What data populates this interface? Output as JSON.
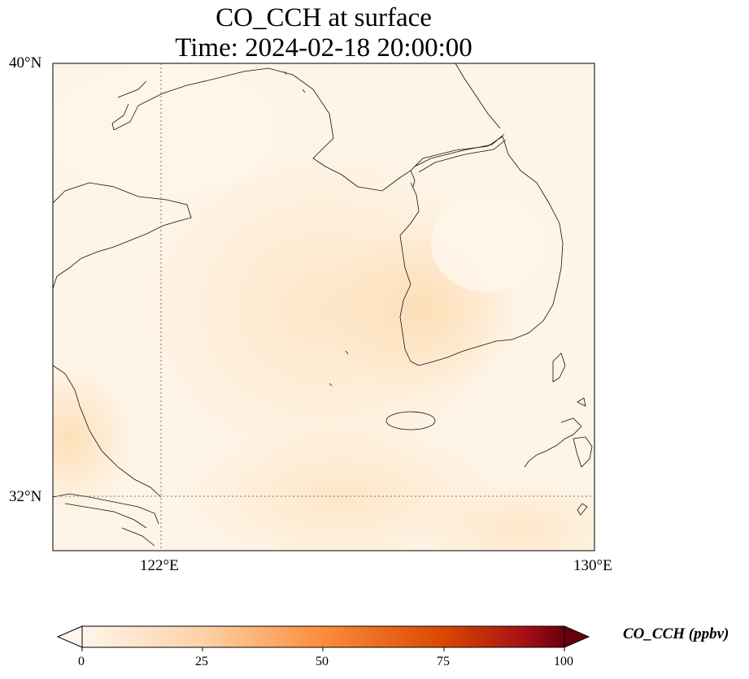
{
  "title": {
    "line1": "CO_CCH at surface",
    "line2": "Time: 2024-02-18 20:00:00"
  },
  "axes": {
    "lat_ticks": [
      "40°N",
      "32°N"
    ],
    "lon_ticks": [
      "122°E",
      "130°E"
    ]
  },
  "map": {
    "lon_range": [
      120,
      130
    ],
    "lat_range": [
      31,
      40
    ],
    "gridlines": "dotted",
    "field_colors": [
      "#fff6ea",
      "#fde9cc",
      "#fde2bc"
    ]
  },
  "colorbar": {
    "label": "CO_CCH (ppbv)",
    "ticks": [
      "0",
      "25",
      "50",
      "75",
      "100"
    ],
    "range": [
      0,
      100
    ],
    "extend": "both",
    "colormap": [
      "#fff5eb",
      "#fdd2a5",
      "#fc8c3c",
      "#d94801",
      "#8c0000",
      "#67000d"
    ]
  }
}
